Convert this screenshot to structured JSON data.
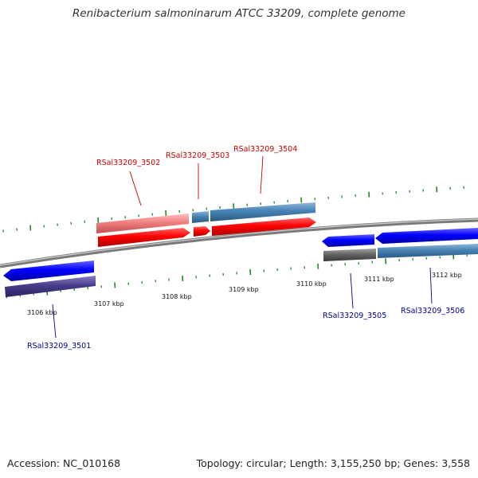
{
  "title": "Renibacterium salmoninarum ATCC 33209, complete genome",
  "footer": {
    "accession": "Accession: NC_010168",
    "topology": "Topology: circular; Length: 3,155,250 bp; Genes: 3,558"
  },
  "ticks": [
    {
      "label": "3106 kbp"
    },
    {
      "label": "3107 kbp"
    },
    {
      "label": "3108 kbp"
    },
    {
      "label": "3109 kbp"
    },
    {
      "label": "3110 kbp"
    },
    {
      "label": "3111 kbp"
    },
    {
      "label": "3112 kbp"
    }
  ],
  "genes": [
    {
      "locus": "RSal33209_3501",
      "strand": "minus"
    },
    {
      "locus": "RSal33209_3502",
      "strand": "plus"
    },
    {
      "locus": "RSal33209_3503",
      "strand": "plus"
    },
    {
      "locus": "RSal33209_3504",
      "strand": "plus"
    },
    {
      "locus": "RSal33209_3505",
      "strand": "minus"
    },
    {
      "locus": "RSal33209_3506",
      "strand": "minus"
    }
  ],
  "colors": {
    "plus_gene": "#ff0000",
    "plus_gene_light": "#f08080",
    "minus_gene": "#0000ff",
    "minus_gene_dark": "#483d8b",
    "feature_blue": "#4682b4",
    "feature_gray": "#666666",
    "tick_green": "#228b22",
    "backbone": "#888888",
    "plus_label": "#cc0000",
    "minus_label": "#000099"
  }
}
